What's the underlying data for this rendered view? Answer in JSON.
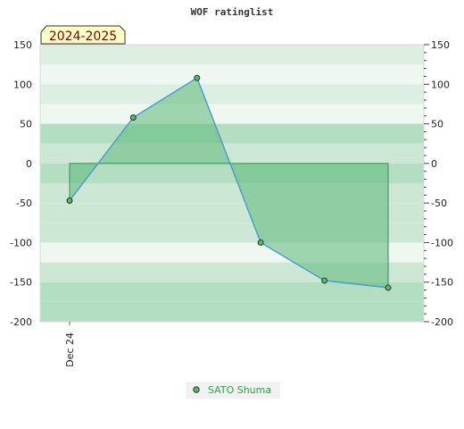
{
  "colors": {
    "band_dark": "#b4dec1",
    "band_mid": "#cce8d5",
    "band_light": "#dcefe2",
    "band_pale": "#eef7f0",
    "area_fill": "#5cb878",
    "area_stroke": "#3b8a55",
    "line": "#4a9ad6",
    "point_fill": "#5ab470",
    "point_stroke": "#1d3d26",
    "axis": "#999999",
    "badge_bg": "#ffffc8",
    "badge_text": "#7a0000"
  },
  "chart_data": {
    "type": "line",
    "title": "WOF ratinglist",
    "season_label": "2024-2025",
    "ylim": [
      -200,
      150
    ],
    "y_ticks": [
      150,
      100,
      50,
      0,
      -50,
      -100,
      -150,
      -200
    ],
    "x_tick_labels": [
      "Dec 24"
    ],
    "series": [
      {
        "name": "SATO Shuma",
        "values": [
          -47,
          58,
          108,
          -100,
          -148,
          -157
        ]
      }
    ],
    "legend_position": "bottom-center",
    "grid": false
  }
}
